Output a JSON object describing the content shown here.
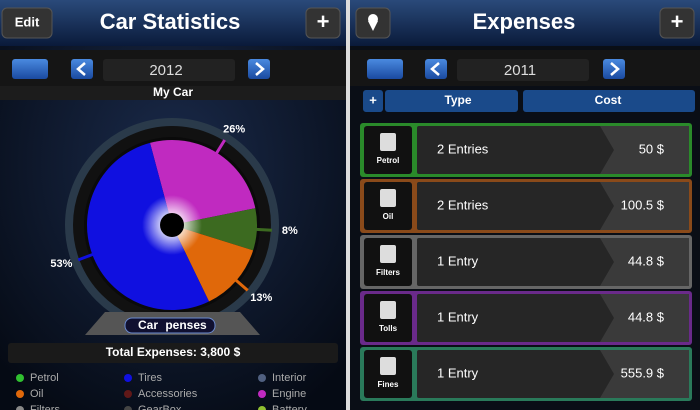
{
  "left": {
    "header": {
      "title": "Car Statistics",
      "left_button": "Edit",
      "right_button": "+"
    },
    "year": "2012",
    "car": "My Car",
    "chart": {
      "type": "pie",
      "values": [
        26,
        8,
        13,
        53
      ],
      "value_labels": [
        "26%",
        "8%",
        "13%",
        "53%"
      ],
      "colors": [
        "#c02ac0",
        "#3c6a20",
        "#e0680a",
        "#1010e0"
      ]
    },
    "logo": [
      "Car",
      "penses"
    ],
    "total": "Total Expenses: 3,800 $",
    "legend": [
      {
        "name": "Petrol",
        "color": "#30c030"
      },
      {
        "name": "Tires",
        "color": "#1010e0"
      },
      {
        "name": "Interior",
        "color": "#506080"
      },
      {
        "name": "Oil",
        "color": "#e0680a"
      },
      {
        "name": "Accessories",
        "color": "#601818"
      },
      {
        "name": "Engine",
        "color": "#c02ac0"
      },
      {
        "name": "Filters",
        "color": "#888888"
      },
      {
        "name": "GearBox",
        "color": "#444444"
      },
      {
        "name": "Battery",
        "color": "#90c030"
      }
    ]
  },
  "right": {
    "header": {
      "title": "Expenses",
      "right_button": "+"
    },
    "year": "2011",
    "table": {
      "add": "+",
      "columns": [
        "Type",
        "Cost"
      ],
      "rows": [
        {
          "icon": "Petrol",
          "type": "2 Entries",
          "cost": "50 $",
          "color": "#2a8a2a"
        },
        {
          "icon": "Oil",
          "type": "2 Entries",
          "cost": "100.5 $",
          "color": "#8a4a1a"
        },
        {
          "icon": "Filters",
          "type": "1 Entry",
          "cost": "44.8 $",
          "color": "#666666"
        },
        {
          "icon": "Tolls",
          "type": "1 Entry",
          "cost": "44.8 $",
          "color": "#6a2a8a"
        },
        {
          "icon": "Fines",
          "type": "1 Entry",
          "cost": "555.9 $",
          "color": "#2a7a5a"
        }
      ]
    }
  }
}
